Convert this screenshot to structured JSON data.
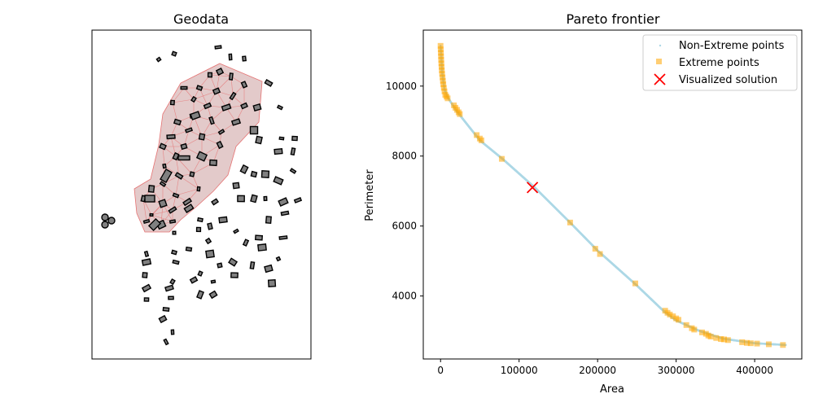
{
  "figure": {
    "left_title": "Geodata",
    "right_title": "Pareto frontier"
  },
  "legend": {
    "non_extreme": "Non-Extreme points",
    "extreme": "Extreme points",
    "visualized": "Visualized solution"
  },
  "colors": {
    "non_extreme": "#add8e6",
    "extreme": "#ffa500",
    "visualized": "#ff0000",
    "polygon_fill": "#808080",
    "hull_fill": "#d9b8b8",
    "hull_edge": "#e57373"
  },
  "chart_data": [
    {
      "type": "map",
      "title": "Geodata",
      "xlabel": "",
      "ylabel": "",
      "ticks": false,
      "content": "small dark-outlined grey polygons with a pink shaded cluster connected by red triangulation lines"
    },
    {
      "type": "scatter",
      "title": "Pareto frontier",
      "xlabel": "Area",
      "ylabel": "Perimeter",
      "xlim": [
        -22000,
        460000
      ],
      "ylim": [
        2200,
        11600
      ],
      "xticks": [
        0,
        100000,
        200000,
        300000,
        400000
      ],
      "yticks": [
        4000,
        6000,
        8000,
        10000
      ],
      "legend_position": "top-right",
      "series": [
        {
          "name": "Non-Extreme points",
          "marker": "dot",
          "curve_anchors": [
            [
              0,
              11150
            ],
            [
              2000,
              10400
            ],
            [
              5000,
              9900
            ],
            [
              10000,
              9650
            ],
            [
              20000,
              9300
            ],
            [
              50000,
              8450
            ],
            [
              80000,
              7900
            ],
            [
              120000,
              7100
            ],
            [
              165000,
              6100
            ],
            [
              200000,
              5300
            ],
            [
              250000,
              4300
            ],
            [
              285000,
              3550
            ],
            [
              300000,
              3300
            ],
            [
              330000,
              3000
            ],
            [
              360000,
              2780
            ],
            [
              400000,
              2650
            ],
            [
              440000,
              2600
            ]
          ]
        },
        {
          "name": "Extreme points",
          "marker": "square",
          "points": [
            [
              0,
              11150
            ],
            [
              200,
              11050
            ],
            [
              400,
              10950
            ],
            [
              600,
              10850
            ],
            [
              800,
              10750
            ],
            [
              1000,
              10650
            ],
            [
              1300,
              10550
            ],
            [
              1600,
              10450
            ],
            [
              2000,
              10350
            ],
            [
              2500,
              10250
            ],
            [
              3000,
              10150
            ],
            [
              3500,
              10050
            ],
            [
              4200,
              9950
            ],
            [
              5000,
              9850
            ],
            [
              6000,
              9750
            ],
            [
              7500,
              9700
            ],
            [
              9000,
              9650
            ],
            [
              17000,
              9450
            ],
            [
              19000,
              9380
            ],
            [
              21000,
              9320
            ],
            [
              23000,
              9250
            ],
            [
              24500,
              9200
            ],
            [
              46000,
              8600
            ],
            [
              50000,
              8500
            ],
            [
              52000,
              8450
            ],
            [
              78000,
              7920
            ],
            [
              165000,
              6100
            ],
            [
              197000,
              5350
            ],
            [
              203000,
              5200
            ],
            [
              248000,
              4360
            ],
            [
              286000,
              3580
            ],
            [
              289000,
              3520
            ],
            [
              292000,
              3470
            ],
            [
              296000,
              3420
            ],
            [
              300000,
              3360
            ],
            [
              303000,
              3320
            ],
            [
              313000,
              3170
            ],
            [
              320000,
              3080
            ],
            [
              323000,
              3040
            ],
            [
              333000,
              2960
            ],
            [
              338000,
              2920
            ],
            [
              341000,
              2870
            ],
            [
              344000,
              2840
            ],
            [
              351000,
              2800
            ],
            [
              357000,
              2770
            ],
            [
              361000,
              2760
            ],
            [
              366000,
              2740
            ],
            [
              384000,
              2680
            ],
            [
              390000,
              2660
            ],
            [
              395000,
              2650
            ],
            [
              403000,
              2640
            ],
            [
              418000,
              2620
            ],
            [
              436000,
              2600
            ]
          ]
        },
        {
          "name": "Visualized solution",
          "marker": "x",
          "points": [
            [
              117000,
              7100
            ]
          ]
        }
      ]
    }
  ]
}
